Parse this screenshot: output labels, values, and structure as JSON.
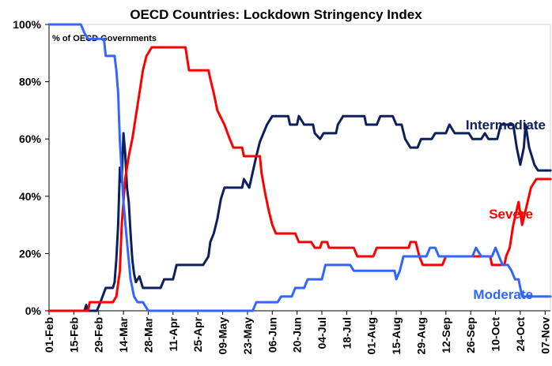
{
  "chart_data": {
    "type": "line",
    "title": "OECD Countries: Lockdown Stringency Index",
    "unit_label": "% of OECD Governments",
    "xlabel": "",
    "ylabel": "",
    "ylim": [
      0,
      100
    ],
    "yticks": [
      "0%",
      "20%",
      "40%",
      "60%",
      "80%",
      "100%"
    ],
    "ytick_values": [
      0,
      20,
      40,
      60,
      80,
      100
    ],
    "xticks": [
      "01-Feb",
      "15-Feb",
      "29-Feb",
      "14-Mar",
      "28-Mar",
      "11-Apr",
      "25-Apr",
      "09-May",
      "23-May",
      "06-Jun",
      "20-Jun",
      "04-Jul",
      "18-Jul",
      "01-Aug",
      "15-Aug",
      "29-Aug",
      "12-Sep",
      "26-Sep",
      "10-Oct",
      "24-Oct",
      "07-Nov"
    ],
    "xtick_dates": [
      "2020-02-01",
      "2020-02-15",
      "2020-02-29",
      "2020-03-14",
      "2020-03-28",
      "2020-04-11",
      "2020-04-25",
      "2020-05-09",
      "2020-05-23",
      "2020-06-06",
      "2020-06-20",
      "2020-07-04",
      "2020-07-18",
      "2020-08-01",
      "2020-08-15",
      "2020-08-29",
      "2020-09-12",
      "2020-09-26",
      "2020-10-10",
      "2020-10-24",
      "2020-11-07"
    ],
    "x_range": [
      "2020-02-01",
      "2020-11-10"
    ],
    "grid": false,
    "legend": "none",
    "series": [
      {
        "name": "Intermediate",
        "color": "#0d1f5c",
        "points": [
          [
            "2020-02-01",
            0
          ],
          [
            "2020-02-21",
            0
          ],
          [
            "2020-02-22",
            2
          ],
          [
            "2020-02-23",
            0
          ],
          [
            "2020-02-28",
            0
          ],
          [
            "2020-03-01",
            3
          ],
          [
            "2020-03-04",
            8
          ],
          [
            "2020-03-08",
            8
          ],
          [
            "2020-03-09",
            10
          ],
          [
            "2020-03-10",
            18
          ],
          [
            "2020-03-11",
            30
          ],
          [
            "2020-03-12",
            50
          ],
          [
            "2020-03-13",
            45
          ],
          [
            "2020-03-14",
            62
          ],
          [
            "2020-03-15",
            55
          ],
          [
            "2020-03-16",
            43
          ],
          [
            "2020-03-17",
            38
          ],
          [
            "2020-03-18",
            27
          ],
          [
            "2020-03-19",
            18
          ],
          [
            "2020-03-20",
            13
          ],
          [
            "2020-03-21",
            10
          ],
          [
            "2020-03-23",
            12
          ],
          [
            "2020-03-25",
            8
          ],
          [
            "2020-04-04",
            8
          ],
          [
            "2020-04-06",
            11
          ],
          [
            "2020-04-11",
            11
          ],
          [
            "2020-04-13",
            16
          ],
          [
            "2020-04-28",
            16
          ],
          [
            "2020-05-01",
            19
          ],
          [
            "2020-05-02",
            24
          ],
          [
            "2020-05-04",
            27
          ],
          [
            "2020-05-06",
            32
          ],
          [
            "2020-05-08",
            39
          ],
          [
            "2020-05-10",
            43
          ],
          [
            "2020-05-20",
            43
          ],
          [
            "2020-05-21",
            46
          ],
          [
            "2020-05-24",
            43
          ],
          [
            "2020-05-28",
            54
          ],
          [
            "2020-05-30",
            59
          ],
          [
            "2020-06-01",
            62
          ],
          [
            "2020-06-03",
            65
          ],
          [
            "2020-06-06",
            68
          ],
          [
            "2020-06-15",
            68
          ],
          [
            "2020-06-16",
            65
          ],
          [
            "2020-06-20",
            65
          ],
          [
            "2020-06-21",
            68
          ],
          [
            "2020-06-24",
            65
          ],
          [
            "2020-06-29",
            65
          ],
          [
            "2020-06-30",
            62
          ],
          [
            "2020-07-03",
            60
          ],
          [
            "2020-07-05",
            62
          ],
          [
            "2020-07-12",
            62
          ],
          [
            "2020-07-13",
            65
          ],
          [
            "2020-07-16",
            68
          ],
          [
            "2020-07-28",
            68
          ],
          [
            "2020-07-29",
            65
          ],
          [
            "2020-08-04",
            65
          ],
          [
            "2020-08-06",
            68
          ],
          [
            "2020-08-13",
            68
          ],
          [
            "2020-08-15",
            65
          ],
          [
            "2020-08-18",
            65
          ],
          [
            "2020-08-20",
            60
          ],
          [
            "2020-08-23",
            57
          ],
          [
            "2020-08-27",
            57
          ],
          [
            "2020-08-29",
            60
          ],
          [
            "2020-09-04",
            60
          ],
          [
            "2020-09-06",
            62
          ],
          [
            "2020-09-12",
            62
          ],
          [
            "2020-09-14",
            65
          ],
          [
            "2020-09-17",
            62
          ],
          [
            "2020-09-25",
            62
          ],
          [
            "2020-09-27",
            60
          ],
          [
            "2020-10-02",
            60
          ],
          [
            "2020-10-04",
            62
          ],
          [
            "2020-10-06",
            60
          ],
          [
            "2020-10-11",
            60
          ],
          [
            "2020-10-13",
            65
          ],
          [
            "2020-10-20",
            65
          ],
          [
            "2020-10-22",
            57
          ],
          [
            "2020-10-24",
            51
          ],
          [
            "2020-10-26",
            57
          ],
          [
            "2020-10-27",
            65
          ],
          [
            "2020-10-29",
            57
          ],
          [
            "2020-11-01",
            51
          ],
          [
            "2020-11-03",
            49
          ],
          [
            "2020-11-10",
            49
          ]
        ]
      },
      {
        "name": "Severe",
        "color": "#ff0000",
        "points": [
          [
            "2020-02-01",
            0
          ],
          [
            "2020-02-23",
            0
          ],
          [
            "2020-02-24",
            3
          ],
          [
            "2020-03-08",
            3
          ],
          [
            "2020-03-10",
            5
          ],
          [
            "2020-03-12",
            14
          ],
          [
            "2020-03-13",
            30
          ],
          [
            "2020-03-15",
            46
          ],
          [
            "2020-03-17",
            54
          ],
          [
            "2020-03-19",
            60
          ],
          [
            "2020-03-21",
            68
          ],
          [
            "2020-03-23",
            76
          ],
          [
            "2020-03-25",
            84
          ],
          [
            "2020-03-27",
            89
          ],
          [
            "2020-03-30",
            92
          ],
          [
            "2020-04-18",
            92
          ],
          [
            "2020-04-20",
            84
          ],
          [
            "2020-05-01",
            84
          ],
          [
            "2020-05-02",
            81
          ],
          [
            "2020-05-04",
            76
          ],
          [
            "2020-05-06",
            70
          ],
          [
            "2020-05-10",
            65
          ],
          [
            "2020-05-13",
            60
          ],
          [
            "2020-05-15",
            57
          ],
          [
            "2020-05-20",
            57
          ],
          [
            "2020-05-21",
            54
          ],
          [
            "2020-05-30",
            54
          ],
          [
            "2020-05-31",
            48
          ],
          [
            "2020-06-02",
            41
          ],
          [
            "2020-06-04",
            35
          ],
          [
            "2020-06-06",
            30
          ],
          [
            "2020-06-08",
            27
          ],
          [
            "2020-06-19",
            27
          ],
          [
            "2020-06-21",
            24
          ],
          [
            "2020-06-28",
            24
          ],
          [
            "2020-06-30",
            22
          ],
          [
            "2020-07-03",
            22
          ],
          [
            "2020-07-04",
            24
          ],
          [
            "2020-07-07",
            24
          ],
          [
            "2020-07-08",
            22
          ],
          [
            "2020-07-22",
            22
          ],
          [
            "2020-07-24",
            19
          ],
          [
            "2020-08-02",
            19
          ],
          [
            "2020-08-04",
            22
          ],
          [
            "2020-08-22",
            22
          ],
          [
            "2020-08-23",
            24
          ],
          [
            "2020-08-26",
            24
          ],
          [
            "2020-08-28",
            19
          ],
          [
            "2020-08-30",
            16
          ],
          [
            "2020-09-10",
            16
          ],
          [
            "2020-09-12",
            19
          ],
          [
            "2020-10-07",
            19
          ],
          [
            "2020-10-08",
            16
          ],
          [
            "2020-10-15",
            16
          ],
          [
            "2020-10-16",
            19
          ],
          [
            "2020-10-18",
            22
          ],
          [
            "2020-10-20",
            30
          ],
          [
            "2020-10-23",
            38
          ],
          [
            "2020-10-25",
            30
          ],
          [
            "2020-10-27",
            35
          ],
          [
            "2020-10-30",
            43
          ],
          [
            "2020-11-02",
            46
          ],
          [
            "2020-11-10",
            46
          ]
        ]
      },
      {
        "name": "Moderate",
        "color": "#3366ff",
        "points": [
          [
            "2020-02-01",
            100
          ],
          [
            "2020-02-19",
            100
          ],
          [
            "2020-02-21",
            97
          ],
          [
            "2020-02-23",
            95
          ],
          [
            "2020-03-03",
            95
          ],
          [
            "2020-03-04",
            89
          ],
          [
            "2020-03-09",
            89
          ],
          [
            "2020-03-10",
            84
          ],
          [
            "2020-03-11",
            76
          ],
          [
            "2020-03-12",
            59
          ],
          [
            "2020-03-14",
            38
          ],
          [
            "2020-03-16",
            24
          ],
          [
            "2020-03-18",
            11
          ],
          [
            "2020-03-20",
            5
          ],
          [
            "2020-03-22",
            3
          ],
          [
            "2020-03-25",
            3
          ],
          [
            "2020-03-28",
            0
          ],
          [
            "2020-05-26",
            0
          ],
          [
            "2020-05-28",
            3
          ],
          [
            "2020-06-09",
            3
          ],
          [
            "2020-06-11",
            5
          ],
          [
            "2020-06-17",
            5
          ],
          [
            "2020-06-19",
            8
          ],
          [
            "2020-06-24",
            8
          ],
          [
            "2020-06-26",
            11
          ],
          [
            "2020-07-04",
            11
          ],
          [
            "2020-07-06",
            16
          ],
          [
            "2020-07-20",
            16
          ],
          [
            "2020-07-22",
            14
          ],
          [
            "2020-08-14",
            14
          ],
          [
            "2020-08-15",
            11
          ],
          [
            "2020-08-17",
            14
          ],
          [
            "2020-08-19",
            19
          ],
          [
            "2020-09-01",
            19
          ],
          [
            "2020-09-03",
            22
          ],
          [
            "2020-09-06",
            22
          ],
          [
            "2020-09-08",
            19
          ],
          [
            "2020-09-27",
            19
          ],
          [
            "2020-09-29",
            22
          ],
          [
            "2020-10-02",
            19
          ],
          [
            "2020-10-08",
            19
          ],
          [
            "2020-10-10",
            22
          ],
          [
            "2020-10-12",
            19
          ],
          [
            "2020-10-14",
            16
          ],
          [
            "2020-10-17",
            16
          ],
          [
            "2020-10-19",
            14
          ],
          [
            "2020-10-21",
            11
          ],
          [
            "2020-10-23",
            11
          ],
          [
            "2020-10-25",
            5
          ],
          [
            "2020-11-10",
            5
          ]
        ]
      }
    ]
  }
}
